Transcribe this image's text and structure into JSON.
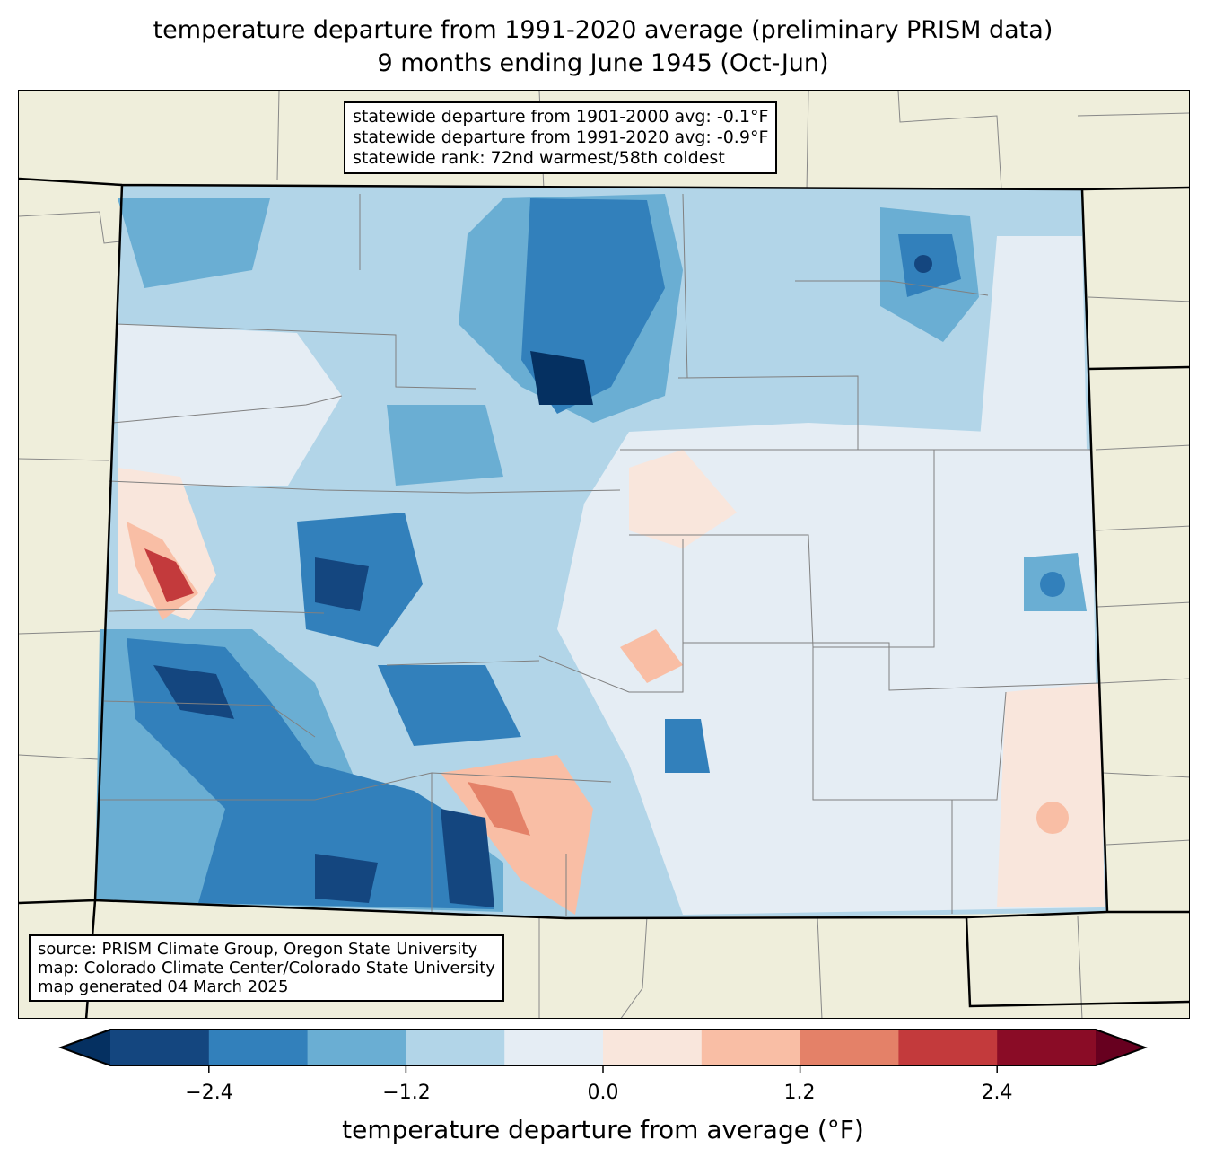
{
  "title": {
    "line1": "temperature departure from 1991-2020 average (preliminary PRISM data)",
    "line2": "9 months ending June 1945 (Oct-Jun)"
  },
  "stats": {
    "line1": "statewide departure from 1901-2000 avg: -0.1°F",
    "line2": "statewide departure from 1991-2020 avg: -0.9°F",
    "line3": "statewide rank: 72nd warmest/58th coldest"
  },
  "source": {
    "line1": "source: PRISM Climate Group, Oregon State University",
    "line2": "map: Colorado Climate Center/Colorado State University",
    "line3": "map generated 04 March 2025"
  },
  "colorbar": {
    "label": "temperature departure from average (°F)",
    "ticks": [
      "−2.4",
      "−1.2",
      "0.0",
      "1.2",
      "2.4"
    ],
    "colors": [
      "#053061",
      "#14467f",
      "#3280bb",
      "#6aaed3",
      "#b2d5e8",
      "#e5edf4",
      "#f9e6dc",
      "#f9bea5",
      "#e48168",
      "#c33a3c",
      "#8a0c26",
      "#67001f"
    ],
    "levels": [
      -3.0,
      -2.4,
      -1.8,
      -1.2,
      -0.6,
      0.0,
      0.6,
      1.2,
      1.8,
      2.4,
      3.0
    ]
  },
  "colors": {
    "land": "#efeedb",
    "county": "#808080"
  }
}
